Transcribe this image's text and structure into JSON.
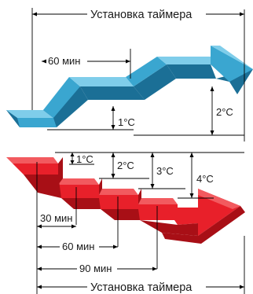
{
  "top_diagram": {
    "timer_setting_label": "Установка таймера",
    "interval_label": "60 мин",
    "step_small_label": "1°C",
    "step_large_label": "2°C",
    "colors": {
      "face": "#3aa6d0",
      "top": "#7fcdea",
      "side": "#1b6f96"
    }
  },
  "bottom_diagram": {
    "step_labels": [
      "1°C",
      "2°C",
      "3°C",
      "4°C"
    ],
    "interval_labels": [
      "30 мин",
      "60 мин",
      "90 мин"
    ],
    "timer_setting_label": "Установка таймера",
    "colors": {
      "face": "#e8202a",
      "top": "#f25a5f",
      "side": "#a80f16"
    }
  }
}
